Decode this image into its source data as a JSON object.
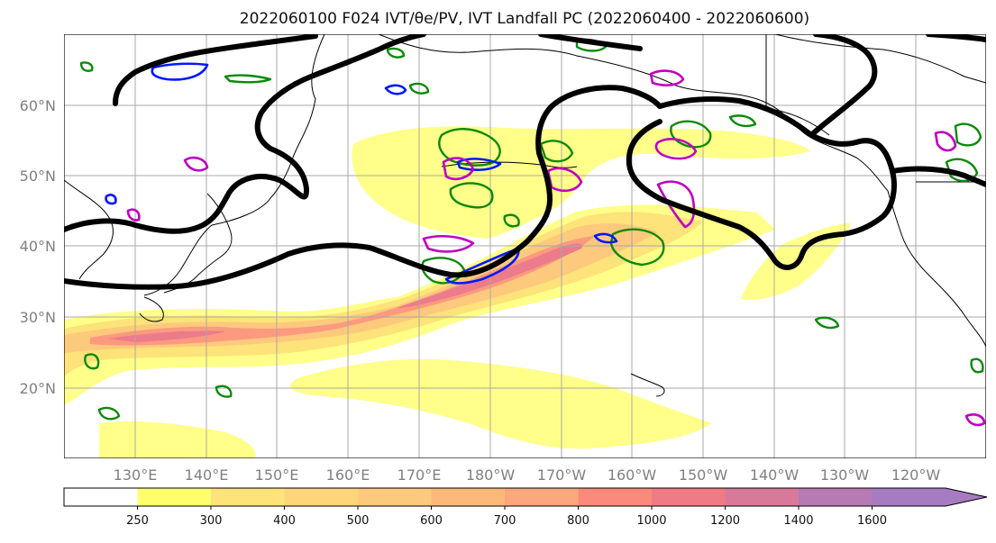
{
  "title": "2022060100 F024 IVT/θe/PV, IVT Landfall PC (2022060400 - 2022060600)",
  "map": {
    "lat_labels": [
      "60°N",
      "50°N",
      "40°N",
      "30°N",
      "20°N"
    ],
    "lon_labels": [
      "130°E",
      "140°E",
      "150°E",
      "160°E",
      "170°E",
      "180°W",
      "170°W",
      "160°W",
      "150°W",
      "140°W",
      "130°W",
      "120°W"
    ],
    "lon_range": [
      120,
      253
    ],
    "lat_range": [
      10,
      70
    ]
  },
  "colorbar": {
    "levels": [
      "250",
      "300",
      "400",
      "500",
      "600",
      "700",
      "800",
      "1000",
      "1200",
      "1400",
      "1600"
    ],
    "colors": [
      "#ffff6e",
      "#fee27a",
      "#fed57a",
      "#fdc97c",
      "#fdb97a",
      "#fda77c",
      "#fb8a7c",
      "#f07b87",
      "#d9799a",
      "#b77ab3",
      "#a67bc2"
    ],
    "extend": "max"
  },
  "colors": {
    "trough": "#000000",
    "pv_contour": "#0a8a0a",
    "theta_blue": "#0018ff",
    "theta_magenta": "#c000c0",
    "grid": "#a8a8a8"
  }
}
